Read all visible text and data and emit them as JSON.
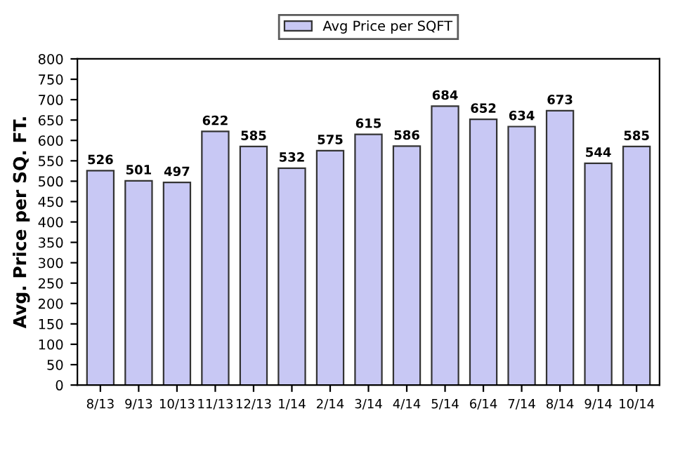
{
  "chart_data": {
    "type": "bar",
    "ylabel": "Avg. Price per SQ. FT.",
    "categories": [
      "8/13",
      "9/13",
      "10/13",
      "11/13",
      "12/13",
      "1/14",
      "2/14",
      "3/14",
      "4/14",
      "5/14",
      "6/14",
      "7/14",
      "8/14",
      "9/14",
      "10/14"
    ],
    "series": [
      {
        "name": "Avg Price per SQFT",
        "color": "#c8c8f4",
        "values": [
          526,
          501,
          497,
          622,
          585,
          532,
          575,
          615,
          586,
          684,
          652,
          634,
          673,
          544,
          585
        ]
      }
    ],
    "ylim": [
      0,
      800
    ],
    "yticks": [
      0,
      50,
      100,
      150,
      200,
      250,
      300,
      350,
      400,
      450,
      500,
      550,
      600,
      650,
      700,
      750,
      800
    ],
    "data_labels": true,
    "legend": "top",
    "grid": false
  }
}
